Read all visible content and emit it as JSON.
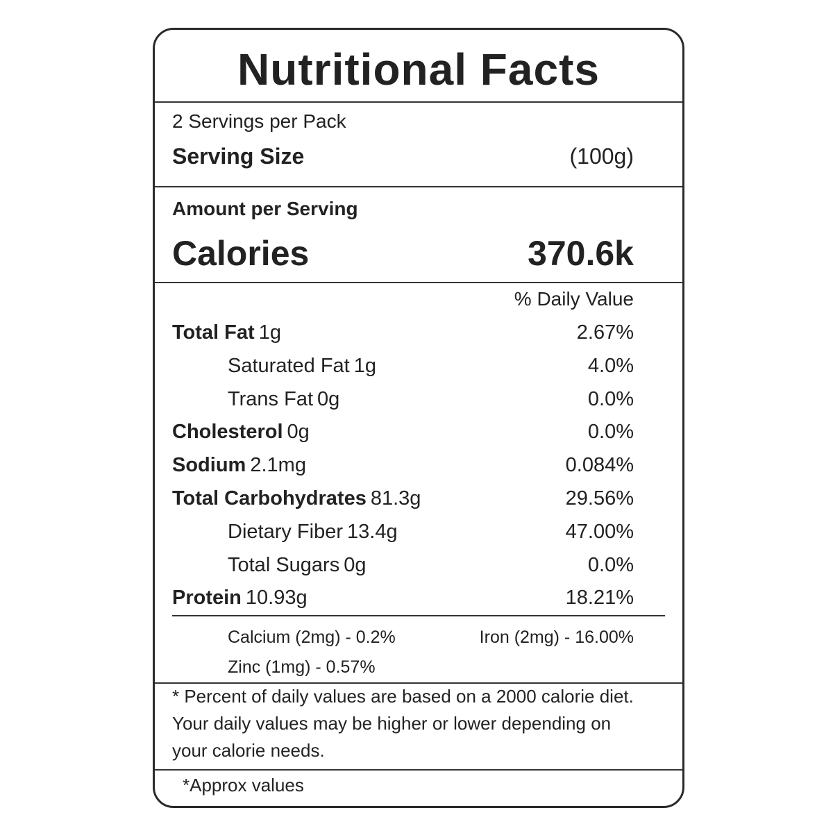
{
  "header": {
    "title": "Nutritional  Facts"
  },
  "serving": {
    "servings_per_pack": "2 Servings per Pack",
    "size_label": "Serving Size",
    "size_value": "(100g)"
  },
  "amount": {
    "heading": "Amount per Serving",
    "calories_label": "Calories",
    "calories_value": "370.6k"
  },
  "daily_value_heading": "% Daily Value",
  "nutrients": [
    {
      "name": "Total Fat",
      "amount": "1g",
      "daily_value": "2.67%",
      "components": [
        {
          "name": "Saturated Fat",
          "amount": "1g",
          "daily_value": "4.0%"
        },
        {
          "name": "Trans Fat",
          "amount": "0g",
          "daily_value": "0.0%"
        }
      ]
    },
    {
      "name": "Cholesterol",
      "amount": "0g",
      "daily_value": "0.0%",
      "components": []
    },
    {
      "name": "Sodium",
      "amount": "2.1mg",
      "daily_value": "0.084%",
      "components": []
    },
    {
      "name": "Total Carbohydrates",
      "amount": "81.3g",
      "daily_value": "29.56%",
      "components": [
        {
          "name": "Dietary Fiber",
          "amount": "13.4g",
          "daily_value": "47.00%"
        },
        {
          "name": "Total Sugars",
          "amount": "0g",
          "daily_value": "0.0%"
        }
      ]
    },
    {
      "name": "Protein",
      "amount": "10.93g",
      "daily_value": "18.21%",
      "components": []
    }
  ],
  "minerals": [
    "Calcium (2mg) - 0.2%",
    "Iron (2mg) - 16.00%",
    "Zinc (1mg) - 0.57%"
  ],
  "footnote": [
    "* Percent of daily values are based on a 2000 calorie diet.",
    "Your daily values may be higher or lower depending on",
    "your calorie needs."
  ],
  "approx_note": "*Approx values"
}
